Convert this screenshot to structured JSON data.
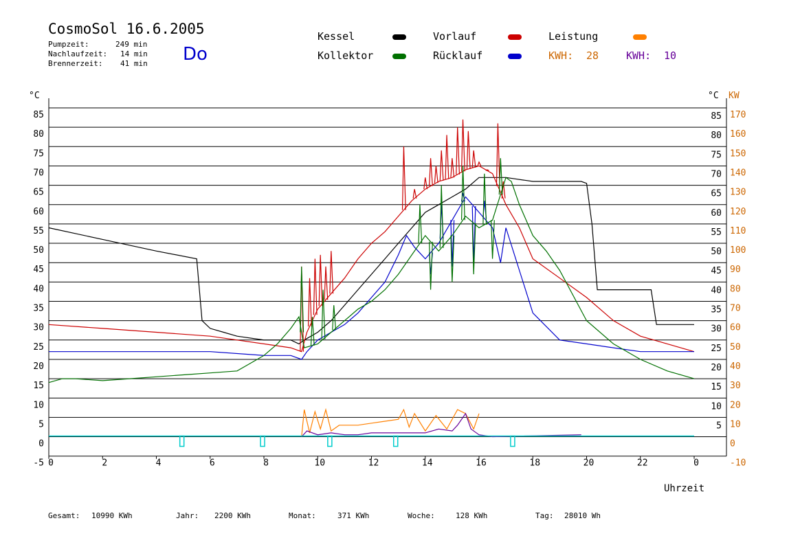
{
  "header": {
    "title": "CosmoSol 16.6.2005",
    "pumpzeit_label": "Pumpzeit:",
    "pumpzeit_value": "249 min",
    "nachlaufzeit_label": "Nachlaufzeit:",
    "nachlaufzeit_value": "14 min",
    "brennerzeit_label": "Brennerzeit:",
    "brennerzeit_value": "41 min",
    "weekday": "Do"
  },
  "legend": {
    "kessel": "Kessel",
    "kollektor": "Kollektor",
    "vorlauf": "Vorlauf",
    "ruecklauf": "Rücklauf",
    "leistung": "Leistung",
    "kwh1_label": "KWH:",
    "kwh1_value": "28",
    "kwh2_label": "KWH:",
    "kwh2_value": "10"
  },
  "colors": {
    "kessel": "#000000",
    "kollektor": "#007000",
    "vorlauf": "#cc0000",
    "ruecklauf": "#0000cc",
    "leistung": "#ff8000",
    "leistung2": "#660099",
    "pump": "#00cccc",
    "axis_right_kw": "#cc6600"
  },
  "footer": {
    "gesamt_label": "Gesamt:",
    "gesamt_value": "10990 KWh",
    "jahr_label": "Jahr:",
    "jahr_value": "2200 KWh",
    "monat_label": "Monat:",
    "monat_value": "371 KWh",
    "woche_label": "Woche:",
    "woche_value": "128 KWh",
    "tag_label": "Tag:",
    "tag_value": "28010 Wh"
  },
  "chart_data": {
    "type": "line",
    "title": "CosmoSol 16.6.2005",
    "xlabel": "Uhrzeit",
    "ylabel_left": "°C",
    "ylabel_right_c": "°C",
    "ylabel_right_kw": "KW",
    "xlim": [
      0,
      24
    ],
    "ylim": [
      -5,
      85
    ],
    "x_ticks": [
      "0",
      "2",
      "4",
      "6",
      "8",
      "10",
      "12",
      "14",
      "16",
      "18",
      "20",
      "22",
      "0"
    ],
    "y_ticks_left": [
      "85",
      "80",
      "75",
      "70",
      "65",
      "60",
      "55",
      "50",
      "45",
      "40",
      "35",
      "30",
      "25",
      "20",
      "15",
      "10",
      "5",
      "0",
      "-5"
    ],
    "y_ticks_right_c": [
      "85",
      "80",
      "75",
      "70",
      "65",
      "60",
      "55",
      "50",
      "45",
      "40",
      "35",
      "30",
      "25",
      "20",
      "15",
      "10",
      "5"
    ],
    "y_ticks_right_kw": [
      "170",
      "160",
      "150",
      "140",
      "130",
      "120",
      "110",
      "100",
      "90",
      "80",
      "70",
      "60",
      "50",
      "40",
      "30",
      "20",
      "10",
      "0",
      "-10"
    ],
    "grid": true,
    "series": [
      {
        "name": "Kessel",
        "color": "#000000",
        "x": [
          0,
          2,
          4,
          5.5,
          5.6,
          5.7,
          6,
          6.5,
          7,
          8,
          9,
          9.3,
          9.5,
          10,
          10.5,
          11,
          11.5,
          12,
          12.5,
          13,
          13.5,
          14,
          14.5,
          15,
          15.5,
          16,
          16.5,
          17,
          18,
          19,
          19.8,
          20,
          20.2,
          20.4,
          21,
          22,
          22.4,
          22.6,
          23,
          24
        ],
        "y": [
          54,
          51,
          48,
          46,
          38,
          30,
          28,
          27,
          26,
          25,
          25,
          24,
          25,
          27,
          30,
          34,
          38,
          42,
          46,
          50,
          54,
          58,
          60,
          62,
          64,
          67,
          67,
          67,
          66,
          66,
          66,
          65.5,
          55,
          38,
          38,
          38,
          38,
          29,
          29,
          29
        ]
      },
      {
        "name": "Vorlauf",
        "color": "#cc0000",
        "x": [
          0,
          2,
          4,
          6,
          7,
          8,
          9,
          9.4,
          9.6,
          10,
          10.5,
          11,
          11.5,
          12,
          12.5,
          13,
          13.5,
          14,
          14.5,
          15,
          15.5,
          16,
          16.5,
          17,
          17.5,
          18,
          19,
          20,
          21,
          22,
          23,
          24
        ],
        "y": [
          29,
          28,
          27,
          26,
          25,
          24,
          23,
          22,
          27,
          33,
          37,
          41,
          46,
          50,
          53,
          57,
          61,
          64,
          66,
          67,
          69,
          70,
          68,
          60,
          54,
          46,
          41,
          36,
          30,
          26,
          24,
          22
        ],
        "spikes": [
          [
            9.4,
            44
          ],
          [
            9.7,
            41
          ],
          [
            9.9,
            46
          ],
          [
            10.1,
            47
          ],
          [
            10.3,
            44
          ],
          [
            10.5,
            48
          ],
          [
            13.2,
            75
          ],
          [
            13.6,
            64
          ],
          [
            14,
            67
          ],
          [
            14.2,
            72
          ],
          [
            14.4,
            70
          ],
          [
            14.6,
            74
          ],
          [
            14.8,
            78
          ],
          [
            15,
            72
          ],
          [
            15.2,
            80
          ],
          [
            15.4,
            82
          ],
          [
            15.6,
            79
          ],
          [
            15.8,
            74
          ],
          [
            16,
            71
          ],
          [
            16.3,
            69
          ],
          [
            16.7,
            81
          ],
          [
            16.9,
            66
          ]
        ]
      },
      {
        "name": "Rücklauf",
        "color": "#0000cc",
        "x": [
          0,
          2,
          4,
          6,
          8,
          9,
          9.4,
          9.6,
          10,
          10.5,
          11,
          11.5,
          12,
          12.5,
          13,
          13.3,
          13.6,
          14,
          14.5,
          15,
          15.5,
          16,
          16.5,
          16.8,
          17,
          17.5,
          18,
          19,
          20,
          21,
          22,
          23,
          24
        ],
        "y": [
          22,
          22,
          22,
          22,
          21,
          21,
          20,
          22,
          25,
          27,
          29,
          32,
          36,
          40,
          47,
          52,
          49,
          46,
          50,
          56,
          62,
          58,
          54,
          45,
          54,
          43,
          32,
          25,
          24,
          23,
          22,
          22,
          22
        ],
        "spikes": [
          [
            14.2,
            42
          ],
          [
            14.6,
            60
          ],
          [
            15,
            44
          ],
          [
            15.4,
            63
          ],
          [
            15.8,
            45
          ],
          [
            16.2,
            61
          ]
        ]
      },
      {
        "name": "Kollektor",
        "color": "#007000",
        "x": [
          0,
          0.5,
          1,
          2,
          3,
          4,
          5,
          6,
          7,
          7.5,
          8,
          8.5,
          9,
          9.3,
          9.5,
          10,
          10.5,
          11,
          11.5,
          12,
          12.5,
          13,
          13.5,
          14,
          14.5,
          15,
          15.5,
          16,
          16.5,
          17,
          17.2,
          17.5,
          18,
          18.5,
          19,
          20,
          21,
          22,
          23,
          24
        ],
        "y": [
          14,
          15,
          15,
          14.5,
          15,
          15.5,
          16,
          16.5,
          17,
          19,
          21,
          24,
          28,
          31,
          23,
          24,
          27,
          30,
          33,
          35,
          38,
          42,
          47,
          52,
          48,
          52,
          57,
          54,
          56,
          67,
          66,
          60,
          52,
          48,
          43,
          30,
          24,
          20,
          17,
          15
        ],
        "spikes": [
          [
            9.4,
            44
          ],
          [
            9.8,
            31
          ],
          [
            10.2,
            38
          ],
          [
            10.6,
            34
          ],
          [
            13.8,
            60
          ],
          [
            14.2,
            38
          ],
          [
            14.6,
            65
          ],
          [
            15,
            40
          ],
          [
            15.4,
            70
          ],
          [
            15.8,
            42
          ],
          [
            16.2,
            68
          ],
          [
            16.5,
            46
          ],
          [
            16.8,
            72
          ]
        ]
      },
      {
        "name": "Leistung",
        "color": "#ff8000",
        "axis": "right_kw",
        "x": [
          9.4,
          9.5,
          9.7,
          9.9,
          10.1,
          10.3,
          10.5,
          10.8,
          11,
          11.5,
          12,
          12.5,
          13,
          13.2,
          13.4,
          13.6,
          14,
          14.4,
          14.8,
          15.2,
          15.5,
          15.8,
          16
        ],
        "y": [
          0,
          14,
          2,
          13,
          4,
          14,
          3,
          6,
          6,
          6,
          7,
          8,
          9,
          14,
          5,
          12,
          3,
          11,
          4,
          14,
          12,
          4,
          12
        ]
      },
      {
        "name": "Leistung 2",
        "color": "#660099",
        "axis": "right_kw",
        "x": [
          9.4,
          9.6,
          10,
          10.5,
          11,
          11.5,
          12,
          12.5,
          13,
          13.5,
          14,
          14.5,
          15,
          15.2,
          15.5,
          15.7,
          16,
          16.5,
          19.8
        ],
        "y": [
          0,
          3,
          1,
          2,
          1,
          1,
          2,
          2,
          2,
          2,
          2,
          4,
          3,
          6,
          12,
          4,
          1,
          0,
          1
        ]
      }
    ],
    "pump_markers_x": [
      4.95,
      7.95,
      10.45,
      12.9,
      17.25
    ],
    "baseline_y": 0
  }
}
